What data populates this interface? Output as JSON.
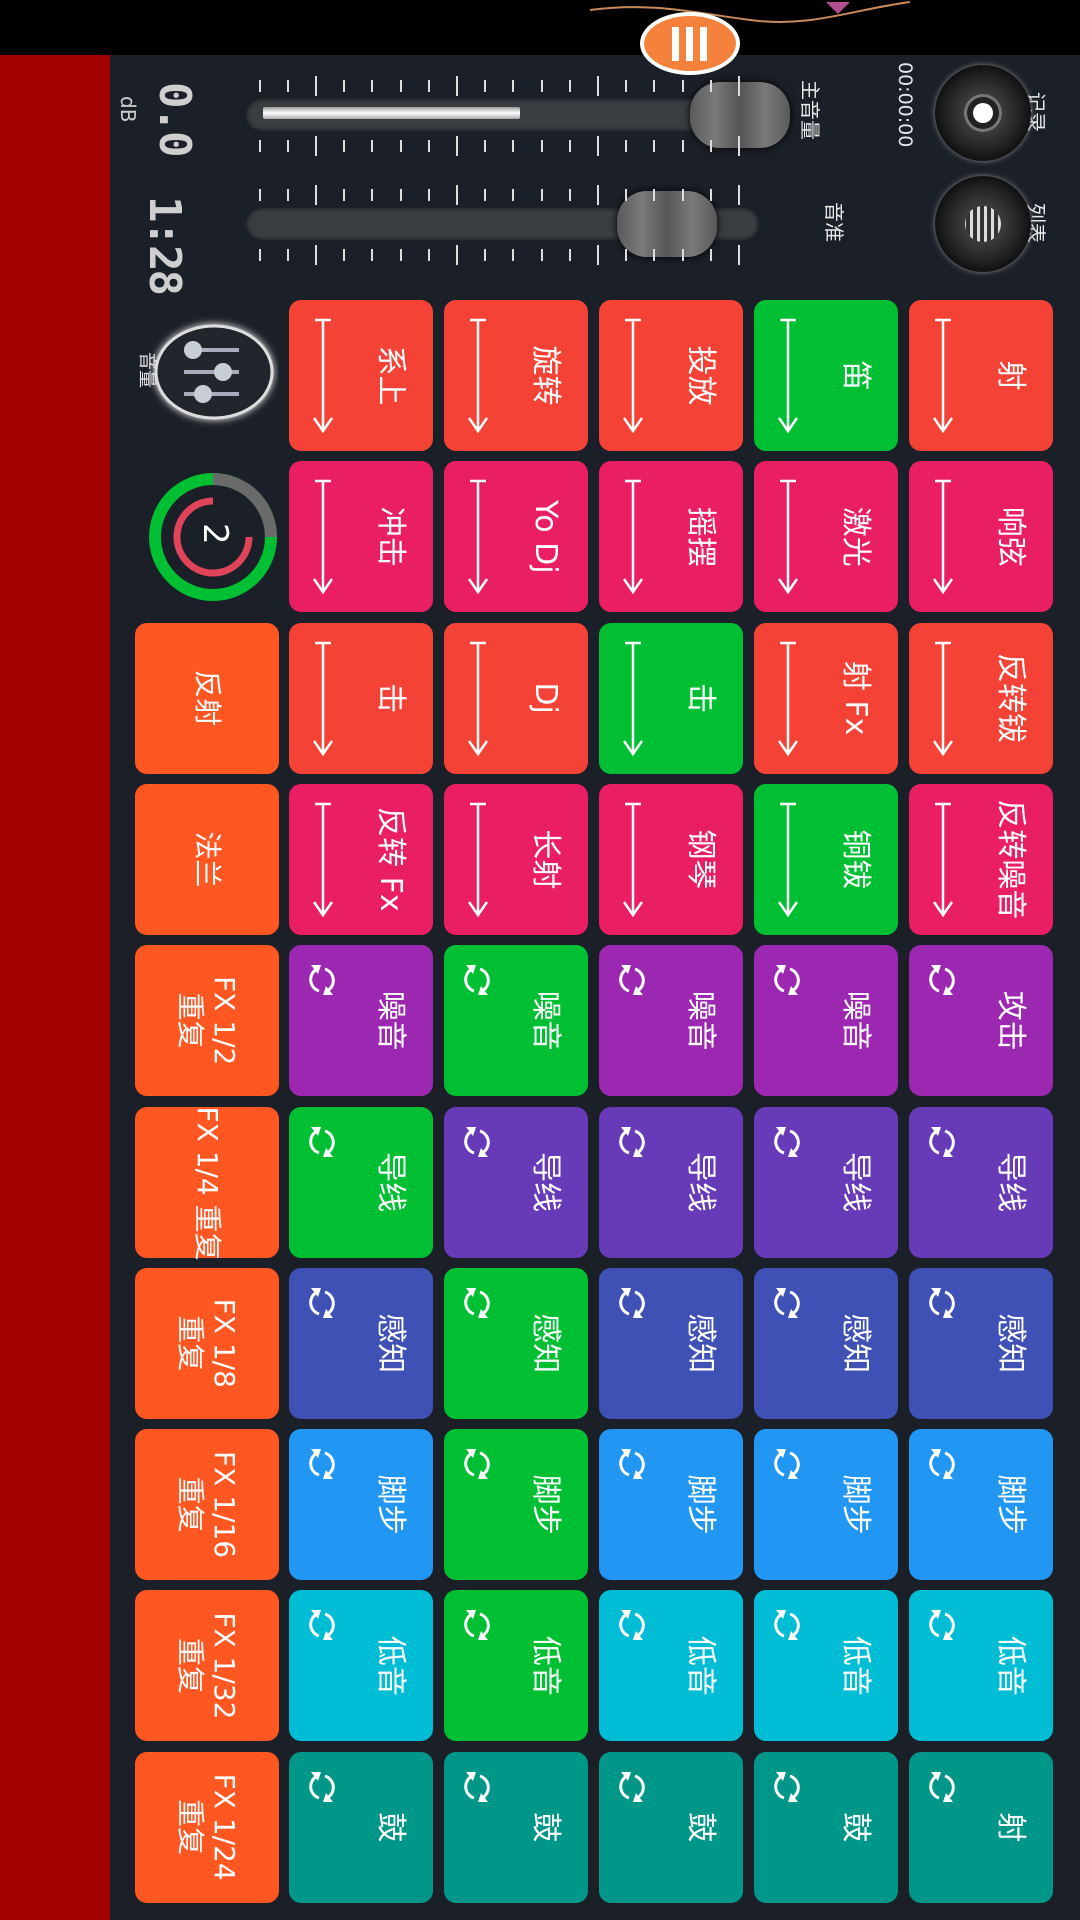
{
  "controls": {
    "record_label": "记录",
    "list_label": "列表",
    "timer": "00:00:00",
    "master_volume_label": "主音量",
    "master_volume_fill": 0.5,
    "master_volume_level": 0.98,
    "pitch_label": "音准",
    "pitch_level": 0.82,
    "db_value": "0.0",
    "db_unit": "dB",
    "tempo_value": "1:28",
    "volume_knob_label": "音量",
    "ring_number": "2"
  },
  "colors": {
    "red": "#f44336",
    "pink": "#e91e63",
    "green": "#00bf32",
    "purple": "#9c27b0",
    "deeppurple": "#673ab7",
    "indigo": "#3f51b5",
    "blue": "#2196f3",
    "cyan": "#00bcd4",
    "teal": "#009688",
    "orange": "#ff5722",
    "menu": "#f4813c",
    "redbar": "#a30000"
  },
  "pad_columns": [
    [
      {
        "label": "射",
        "color": "red",
        "icon": "arrow"
      },
      {
        "label": "笛",
        "color": "green",
        "icon": "arrow"
      },
      {
        "label": "投放",
        "color": "red",
        "icon": "arrow"
      },
      {
        "label": "旋转",
        "color": "red",
        "icon": "arrow"
      },
      {
        "label": "系上",
        "color": "red",
        "icon": "arrow"
      }
    ],
    [
      {
        "label": "响弦",
        "color": "pink",
        "icon": "arrow"
      },
      {
        "label": "激光",
        "color": "pink",
        "icon": "arrow"
      },
      {
        "label": "摇摆",
        "color": "pink",
        "icon": "arrow"
      },
      {
        "label": "Yo Dj",
        "color": "pink",
        "icon": "arrow"
      },
      {
        "label": "冲击",
        "color": "pink",
        "icon": "arrow"
      }
    ],
    [
      {
        "label": "反转钹",
        "color": "red",
        "icon": "arrow"
      },
      {
        "label": "射 Fx",
        "color": "red",
        "icon": "arrow"
      },
      {
        "label": "击",
        "color": "green",
        "icon": "arrow"
      },
      {
        "label": "Dj",
        "color": "red",
        "icon": "arrow"
      },
      {
        "label": "击",
        "color": "red",
        "icon": "arrow"
      },
      {
        "label": "反射",
        "color": "orange",
        "icon": "none"
      }
    ],
    [
      {
        "label": "反转噪音",
        "color": "pink",
        "icon": "arrow"
      },
      {
        "label": "铜钹",
        "color": "green",
        "icon": "arrow"
      },
      {
        "label": "钢琴",
        "color": "pink",
        "icon": "arrow"
      },
      {
        "label": "长射",
        "color": "pink",
        "icon": "arrow"
      },
      {
        "label": "反转 Fx",
        "color": "pink",
        "icon": "arrow"
      },
      {
        "label": "法兰",
        "color": "orange",
        "icon": "none"
      }
    ],
    [
      {
        "label": "攻击",
        "color": "purple",
        "icon": "loop"
      },
      {
        "label": "噪音",
        "color": "purple",
        "icon": "loop"
      },
      {
        "label": "噪音",
        "color": "purple",
        "icon": "loop"
      },
      {
        "label": "噪音",
        "color": "green",
        "icon": "loop"
      },
      {
        "label": "噪音",
        "color": "purple",
        "icon": "loop"
      },
      {
        "label": "FX 1/2\n重复",
        "color": "orange",
        "icon": "none"
      }
    ],
    [
      {
        "label": "导线",
        "color": "deeppurple",
        "icon": "loop"
      },
      {
        "label": "导线",
        "color": "deeppurple",
        "icon": "loop"
      },
      {
        "label": "导线",
        "color": "deeppurple",
        "icon": "loop"
      },
      {
        "label": "导线",
        "color": "deeppurple",
        "icon": "loop"
      },
      {
        "label": "导线",
        "color": "green",
        "icon": "loop"
      },
      {
        "label": "FX 1/4 重复",
        "color": "orange",
        "icon": "none"
      }
    ],
    [
      {
        "label": "感知",
        "color": "indigo",
        "icon": "loop"
      },
      {
        "label": "感知",
        "color": "indigo",
        "icon": "loop"
      },
      {
        "label": "感知",
        "color": "indigo",
        "icon": "loop"
      },
      {
        "label": "感知",
        "color": "green",
        "icon": "loop"
      },
      {
        "label": "感知",
        "color": "indigo",
        "icon": "loop"
      },
      {
        "label": "FX 1/8\n重复",
        "color": "orange",
        "icon": "none"
      }
    ],
    [
      {
        "label": "脚步",
        "color": "blue",
        "icon": "loop"
      },
      {
        "label": "脚步",
        "color": "blue",
        "icon": "loop"
      },
      {
        "label": "脚步",
        "color": "blue",
        "icon": "loop"
      },
      {
        "label": "脚步",
        "color": "green",
        "icon": "loop"
      },
      {
        "label": "脚步",
        "color": "blue",
        "icon": "loop"
      },
      {
        "label": "FX 1/16\n重复",
        "color": "orange",
        "icon": "none"
      }
    ],
    [
      {
        "label": "低音",
        "color": "cyan",
        "icon": "loop"
      },
      {
        "label": "低音",
        "color": "cyan",
        "icon": "loop"
      },
      {
        "label": "低音",
        "color": "cyan",
        "icon": "loop"
      },
      {
        "label": "低音",
        "color": "green",
        "icon": "loop"
      },
      {
        "label": "低音",
        "color": "cyan",
        "icon": "loop"
      },
      {
        "label": "FX 1/32\n重复",
        "color": "orange",
        "icon": "none"
      }
    ],
    [
      {
        "label": "射",
        "color": "teal",
        "icon": "loop"
      },
      {
        "label": "鼓",
        "color": "teal",
        "icon": "loop"
      },
      {
        "label": "鼓",
        "color": "teal",
        "icon": "loop"
      },
      {
        "label": "鼓",
        "color": "teal",
        "icon": "loop"
      },
      {
        "label": "鼓",
        "color": "teal",
        "icon": "loop"
      },
      {
        "label": "FX 1/24\n重复",
        "color": "orange",
        "icon": "none"
      }
    ]
  ]
}
